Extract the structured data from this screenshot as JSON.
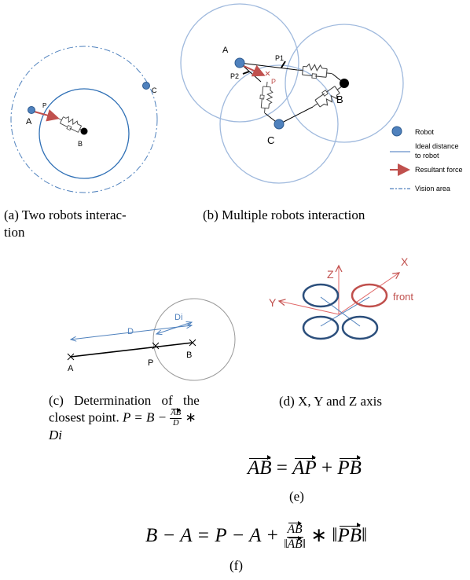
{
  "panel_a": {
    "labels": [
      "A",
      "P",
      "B",
      "C"
    ],
    "caption": [
      "(a) Two robots interac-",
      "tion"
    ]
  },
  "panel_b": {
    "labels": [
      "A",
      "P1",
      "P2",
      "P",
      "B",
      "C"
    ],
    "legend": [
      "Robot",
      "Ideal distance",
      "to robot",
      "Resultant force",
      "Vision area"
    ],
    "caption": "(b) Multiple robots interaction"
  },
  "panel_c": {
    "labels": [
      "D",
      "Di",
      "A",
      "P",
      "B"
    ],
    "caption": {
      "line1": "(c) Determination of the",
      "line2": "closest point.",
      "lhs": "P = B −",
      "num": "AB",
      "den": "D",
      "op": "∗",
      "line3": "Di"
    }
  },
  "panel_d": {
    "labels": [
      "Z",
      "X",
      "Y",
      "front"
    ],
    "caption": "(d) X, Y and Z axis"
  },
  "eq_e": {
    "terms": [
      "AB",
      "=",
      "AP",
      "+",
      "PB"
    ],
    "label": "(e)"
  },
  "eq_f": {
    "left": "B − A = P − A +",
    "num": "AB",
    "den": [
      "‖",
      "AB",
      "‖"
    ],
    "tail": [
      "∗ ‖",
      "PB",
      "‖"
    ],
    "label": "(f)"
  }
}
